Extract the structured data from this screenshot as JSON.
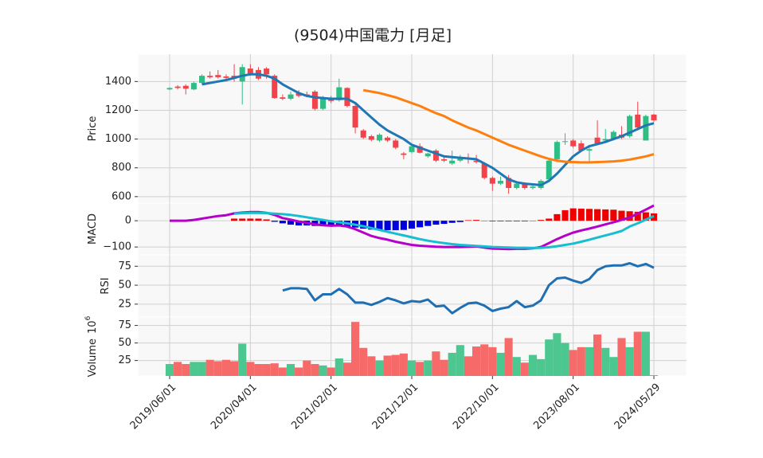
{
  "chart_data": [
    {
      "type": "candlestick",
      "title": "(9504)中国電力 [月足]",
      "ylabel": "Price",
      "categories": [
        "2019/06/01",
        null,
        null,
        null,
        null,
        null,
        null,
        null,
        null,
        null,
        "2020/04/01",
        null,
        null,
        null,
        null,
        null,
        null,
        null,
        null,
        null,
        "2021/02/01",
        null,
        null,
        null,
        null,
        null,
        null,
        null,
        null,
        null,
        "2021/12/01",
        null,
        null,
        null,
        null,
        null,
        null,
        null,
        null,
        null,
        "2022/10/01",
        null,
        null,
        null,
        null,
        null,
        null,
        null,
        null,
        null,
        "2023/08/01",
        null,
        null,
        null,
        null,
        null,
        null,
        null,
        null,
        null,
        "2024/05/29"
      ],
      "open": [
        1345,
        1365,
        1370,
        1345,
        1390,
        1440,
        1445,
        1435,
        1440,
        1400,
        1490,
        1480,
        1490,
        1440,
        1290,
        1280,
        1320,
        1310,
        1330,
        1210,
        1280,
        1270,
        1355,
        1230,
        1060,
        1020,
        990,
        1010,
        990,
        900,
        910,
        950,
        880,
        920,
        860,
        830,
        850,
        870,
        850,
        830,
        730,
        690,
        730,
        660,
        690,
        660,
        660,
        720,
        860,
        980,
        990,
        970,
        920,
        1010,
        990,
        1000,
        1030,
        1020,
        1170,
        990,
        1170
      ],
      "high": [
        1360,
        1375,
        1380,
        1400,
        1450,
        1470,
        1480,
        1450,
        1520,
        1520,
        1520,
        1500,
        1500,
        1450,
        1310,
        1330,
        1340,
        1330,
        1340,
        1300,
        1300,
        1420,
        1360,
        1240,
        1070,
        1030,
        1040,
        1020,
        1000,
        910,
        960,
        970,
        905,
        930,
        880,
        920,
        890,
        900,
        890,
        840,
        740,
        740,
        750,
        700,
        700,
        680,
        720,
        860,
        990,
        1040,
        1000,
        990,
        960,
        1130,
        1070,
        1060,
        1090,
        1170,
        1260,
        1170,
        1175
      ],
      "low": [
        1340,
        1345,
        1310,
        1340,
        1385,
        1420,
        1420,
        1400,
        1400,
        1240,
        1440,
        1410,
        1420,
        1280,
        1270,
        1270,
        1290,
        1290,
        1200,
        1200,
        1250,
        1260,
        1220,
        1040,
        1000,
        985,
        980,
        980,
        930,
        860,
        900,
        900,
        870,
        840,
        840,
        820,
        840,
        830,
        830,
        720,
        640,
        680,
        620,
        650,
        650,
        650,
        650,
        710,
        850,
        960,
        940,
        910,
        840,
        960,
        990,
        990,
        1000,
        1010,
        1060,
        990,
        1120
      ],
      "close": [
        1355,
        1355,
        1350,
        1390,
        1440,
        1430,
        1430,
        1425,
        1420,
        1500,
        1455,
        1420,
        1450,
        1285,
        1280,
        1310,
        1300,
        1300,
        1210,
        1290,
        1265,
        1360,
        1230,
        1080,
        1010,
        995,
        1030,
        990,
        940,
        890,
        950,
        905,
        900,
        850,
        850,
        850,
        870,
        860,
        840,
        730,
        690,
        710,
        660,
        690,
        660,
        670,
        710,
        850,
        980,
        985,
        950,
        920,
        930,
        970,
        1000,
        1050,
        1010,
        1160,
        1080,
        1160,
        1130
      ],
      "up_color": "#2ebd85",
      "down_color": "#f2424a",
      "series": [
        {
          "color": "#1f77b4",
          "values": [
            null,
            null,
            null,
            null,
            1380,
            1390,
            1400,
            1410,
            1425,
            1440,
            1450,
            1450,
            1440,
            1420,
            1380,
            1350,
            1320,
            1300,
            1290,
            1285,
            1280,
            1280,
            1280,
            1250,
            1200,
            1150,
            1100,
            1060,
            1030,
            1000,
            960,
            940,
            920,
            900,
            880,
            875,
            870,
            865,
            860,
            830,
            800,
            760,
            720,
            700,
            690,
            685,
            680,
            710,
            760,
            820,
            880,
            920,
            950,
            965,
            980,
            1000,
            1020,
            1045,
            1070,
            1095,
            1110
          ]
        },
        {
          "color": "#ff7f0e",
          "values": [
            null,
            null,
            null,
            null,
            null,
            null,
            null,
            null,
            null,
            null,
            null,
            null,
            null,
            null,
            null,
            null,
            null,
            null,
            null,
            null,
            null,
            null,
            null,
            null,
            1340,
            1330,
            1320,
            1305,
            1290,
            1270,
            1250,
            1230,
            1205,
            1180,
            1160,
            1130,
            1105,
            1080,
            1060,
            1035,
            1010,
            985,
            960,
            940,
            920,
            900,
            880,
            862,
            850,
            843,
            840,
            838,
            838,
            840,
            842,
            845,
            850,
            858,
            868,
            880,
            895
          ]
        }
      ],
      "ylim": [
        555,
        1590
      ],
      "yticks": [
        600,
        800,
        1000,
        1200,
        1400
      ],
      "grid": true
    },
    {
      "type": "line",
      "ylabel": "MACD",
      "series": [
        {
          "color": "#b400c8",
          "values": [
            0,
            0,
            0,
            3,
            8,
            13,
            18,
            21,
            28,
            31,
            33,
            33,
            30,
            22,
            10,
            4,
            -3,
            -8,
            -14,
            -17,
            -19,
            -18,
            -22,
            -32,
            -45,
            -58,
            -66,
            -72,
            -80,
            -86,
            -92,
            -95,
            -97,
            -99,
            -100,
            -100,
            -100,
            -99,
            -98,
            -102,
            -106,
            -107,
            -108,
            -107,
            -107,
            -105,
            -100,
            -85,
            -70,
            -57,
            -45,
            -37,
            -30,
            -22,
            -14,
            -6,
            3,
            12,
            27,
            42,
            58
          ]
        },
        {
          "color": "#17becf",
          "values": [
            null,
            null,
            null,
            null,
            null,
            null,
            null,
            null,
            27,
            29,
            30,
            30,
            29,
            27,
            25,
            22,
            18,
            13,
            8,
            3,
            -2,
            -6,
            -10,
            -15,
            -21,
            -28,
            -35,
            -42,
            -49,
            -56,
            -63,
            -70,
            -76,
            -81,
            -85,
            -89,
            -92,
            -94,
            -96,
            -98,
            -100,
            -101,
            -102,
            -103,
            -103,
            -104,
            -103,
            -101,
            -97,
            -92,
            -87,
            -80,
            -72,
            -64,
            -56,
            -48,
            -39,
            -22,
            -10,
            4,
            18
          ]
        }
      ],
      "histogram": {
        "up_color": "#ee0000",
        "down_color": "#0000dd",
        "values": [
          null,
          null,
          null,
          null,
          null,
          null,
          null,
          null,
          8,
          8,
          8,
          8,
          5,
          -4,
          -10,
          -15,
          -18,
          -18,
          -20,
          -20,
          -18,
          -20,
          -22,
          -26,
          -30,
          -34,
          -36,
          -36,
          -36,
          -35,
          -30,
          -25,
          -20,
          -15,
          -12,
          -8,
          -5,
          2,
          3,
          -1,
          -2,
          -2,
          -2,
          -2,
          -2,
          -1,
          3,
          8,
          25,
          40,
          47,
          46,
          45,
          44,
          43,
          42,
          38,
          36,
          34,
          32,
          28
        ]
      },
      "ylim": [
        -130,
        67
      ],
      "yticks": [
        {
          "value": -100,
          "label": "−100"
        },
        0
      ],
      "grid": true
    },
    {
      "type": "line",
      "ylabel": "RSI",
      "series": [
        {
          "color": "#1f6fb4",
          "values": [
            null,
            null,
            null,
            null,
            null,
            null,
            null,
            null,
            null,
            null,
            null,
            null,
            null,
            null,
            43,
            46,
            46,
            45,
            30,
            38,
            38,
            45,
            38,
            27,
            27,
            24,
            28,
            33,
            30,
            26,
            29,
            28,
            31,
            22,
            23,
            13,
            20,
            26,
            27,
            23,
            16,
            19,
            21,
            29,
            21,
            23,
            30,
            50,
            59,
            60,
            56,
            53,
            58,
            70,
            75,
            76,
            76,
            79,
            75,
            78,
            73
          ]
        }
      ],
      "ylim": [
        8,
        90
      ],
      "yticks": [
        25,
        50,
        75
      ],
      "grid": true
    },
    {
      "type": "bar",
      "ylabel": "Volume",
      "scale_base": "10",
      "scale_exp": "6",
      "values": [
        20,
        23,
        20,
        23,
        23,
        26,
        24,
        26,
        24,
        49,
        23,
        20,
        20,
        21,
        15,
        20,
        15,
        25,
        20,
        18,
        15,
        28,
        22,
        80,
        43,
        31,
        25,
        32,
        33,
        35,
        25,
        23,
        25,
        38,
        26,
        36,
        47,
        31,
        45,
        48,
        44,
        36,
        57,
        30,
        22,
        33,
        27,
        55,
        64,
        50,
        40,
        44,
        44,
        62,
        43,
        30,
        57,
        44,
        66,
        66,
        4
      ],
      "up_color": "#4cc790",
      "down_color": "#f76a6a",
      "ylim": [
        3,
        87
      ],
      "yticks": [
        25,
        50,
        75
      ],
      "grid": true
    }
  ]
}
